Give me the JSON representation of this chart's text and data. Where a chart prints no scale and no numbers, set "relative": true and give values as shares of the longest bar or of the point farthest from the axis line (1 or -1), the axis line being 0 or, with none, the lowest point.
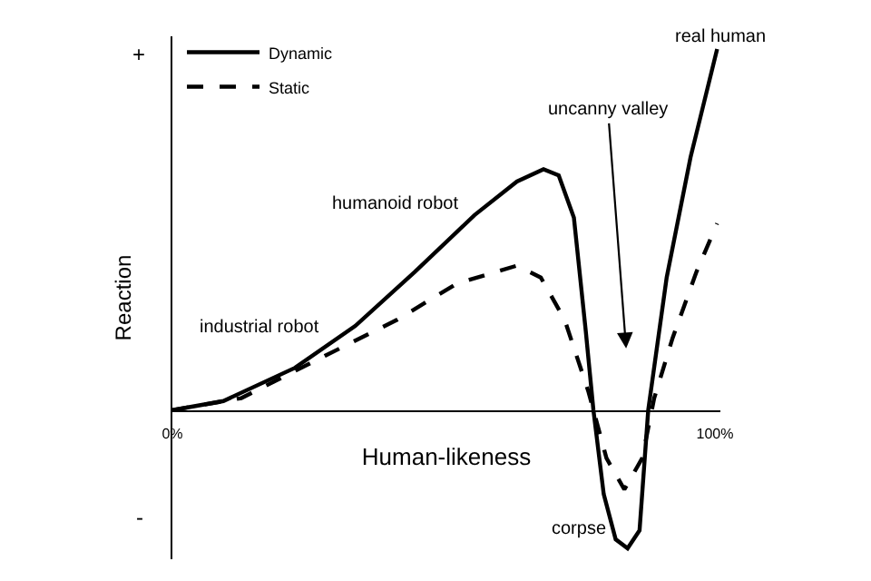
{
  "chart_data": {
    "type": "line",
    "relative": true,
    "xlabel": "Human-likeness",
    "ylabel": "Reaction",
    "x": [
      0,
      9.4,
      22.6,
      33.7,
      44.7,
      55.7,
      63.5,
      68.4,
      71.2,
      74,
      76.2,
      77.6,
      79.5,
      81.7,
      83.9,
      86.1,
      87.7,
      91.1,
      95.5,
      100.4
    ],
    "series": [
      {
        "name": "Dynamic",
        "color": "#000000",
        "line_style": "solid",
        "values": [
          0,
          0.025,
          0.117,
          0.233,
          0.383,
          0.54,
          0.633,
          0.667,
          0.65,
          0.533,
          0.217,
          0,
          -0.233,
          -0.358,
          -0.383,
          -0.333,
          0,
          0.367,
          0.7,
          1.0
        ]
      },
      {
        "name": "Static",
        "color": "#000000",
        "line_style": "dashed",
        "x": [
          0,
          12.7,
          28.1,
          41.4,
          52.4,
          63.5,
          67.9,
          72.3,
          76.7,
          80,
          83.3,
          86.6,
          88.8,
          92.2,
          96.6,
          100.4
        ],
        "values": [
          0,
          0.033,
          0.15,
          0.25,
          0.35,
          0.4,
          0.367,
          0.25,
          0.05,
          -0.133,
          -0.22,
          -0.133,
          0.033,
          0.2,
          0.383,
          0.517
        ]
      }
    ],
    "xlim": [
      0,
      101
    ],
    "xticks": [
      {
        "value": 0,
        "label": "0%"
      },
      {
        "value": 100,
        "label": "100%"
      }
    ],
    "annotations": [
      "+",
      "-",
      "real human",
      "humanoid robot",
      "industrial robot",
      "uncanny valley",
      "corpse"
    ],
    "legend": "top left"
  }
}
